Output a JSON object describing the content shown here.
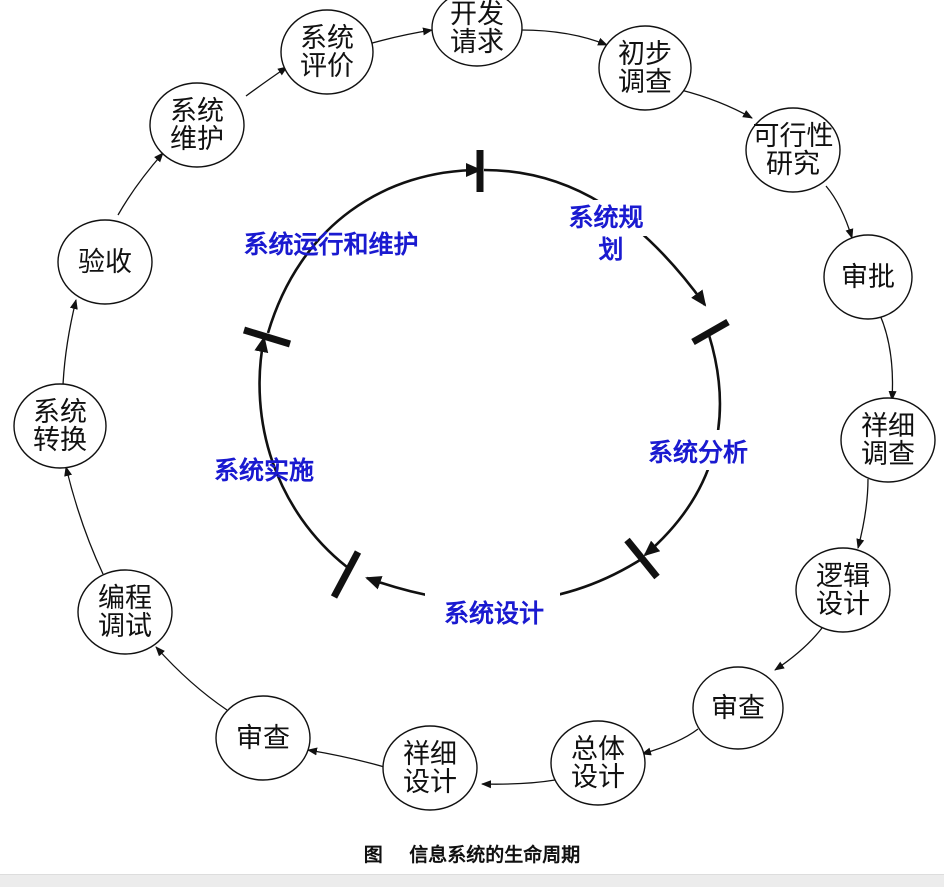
{
  "caption": "图    信息系统的生命周期",
  "colors": {
    "phase_text": "#1a1ad0",
    "line": "#111111",
    "node_fill": "#ffffff"
  },
  "outer_cycle": [
    {
      "id": "dev-request",
      "lines": [
        "开发",
        "请求"
      ]
    },
    {
      "id": "prelim-survey",
      "lines": [
        "初步",
        "调查"
      ]
    },
    {
      "id": "feasibility",
      "lines": [
        "可行性",
        "研究"
      ]
    },
    {
      "id": "approval",
      "lines": [
        "审批"
      ]
    },
    {
      "id": "detailed-survey",
      "lines": [
        "祥细",
        "调查"
      ]
    },
    {
      "id": "logical-design",
      "lines": [
        "逻辑",
        "设计"
      ]
    },
    {
      "id": "review-1",
      "lines": [
        "审查"
      ]
    },
    {
      "id": "general-design",
      "lines": [
        "总体",
        "设计"
      ]
    },
    {
      "id": "detailed-design",
      "lines": [
        "祥细",
        "设计"
      ]
    },
    {
      "id": "review-2",
      "lines": [
        "审查"
      ]
    },
    {
      "id": "coding-debug",
      "lines": [
        "编程",
        "调试"
      ]
    },
    {
      "id": "system-conversion",
      "lines": [
        "系统",
        "转换"
      ]
    },
    {
      "id": "acceptance",
      "lines": [
        "验收"
      ]
    },
    {
      "id": "system-maintenance",
      "lines": [
        "系统",
        "维护"
      ]
    },
    {
      "id": "system-evaluation",
      "lines": [
        "系统",
        "评价"
      ]
    }
  ],
  "inner_phases": [
    {
      "id": "planning",
      "lines": [
        "系统规",
        "划"
      ]
    },
    {
      "id": "analysis",
      "lines": [
        "系统分析"
      ]
    },
    {
      "id": "design",
      "lines": [
        "系统设计"
      ]
    },
    {
      "id": "implementation",
      "lines": [
        "系统实施"
      ]
    },
    {
      "id": "operation",
      "lines": [
        "系统运行和维护"
      ]
    }
  ]
}
